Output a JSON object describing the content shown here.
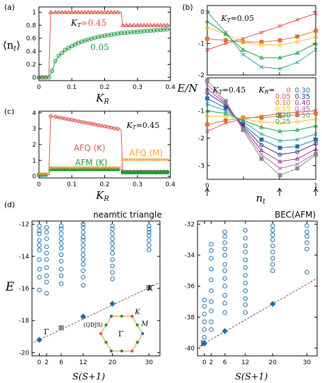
{
  "colors": {
    "red": "#e0504c",
    "green": "#1a9a3c",
    "orange": "#f0a030",
    "axis": "#000000",
    "blue": "#1a6fb0",
    "grey": "#888888",
    "teal": "#1a8c9a"
  },
  "chart_data": [
    {
      "panel": "(a)",
      "type": "line",
      "ylabel": "⟨n_t⟩",
      "xlabel": "K_R",
      "xlim": [
        0,
        0.4
      ],
      "ylim": [
        0,
        1
      ],
      "xticks": [
        "0",
        "0.1",
        "0.2",
        "0.3",
        "0.4"
      ],
      "yticks": [
        "0",
        "0.2",
        "0.4",
        "0.6",
        "0.8",
        "1"
      ],
      "annotations": [
        "K_T = 0.45",
        "0.05"
      ],
      "series": [
        {
          "name": "K_T = 0.45",
          "color": "red",
          "marker": "triangle",
          "x": [
            0,
            0.01,
            0.02,
            0.03,
            0.036,
            0.05,
            0.1,
            0.15,
            0.2,
            0.25,
            0.255,
            0.3,
            0.35,
            0.4
          ],
          "y": [
            0,
            0,
            0,
            0,
            1,
            1,
            1,
            1,
            1,
            1,
            0.8,
            0.8,
            0.8,
            0.8
          ]
        },
        {
          "name": "0.05",
          "color": "green",
          "marker": "circle",
          "x": [
            0,
            0.01,
            0.02,
            0.03,
            0.04,
            0.05,
            0.06,
            0.08,
            0.1,
            0.12,
            0.15,
            0.18,
            0.2,
            0.25,
            0.3,
            0.35,
            0.4
          ],
          "y": [
            0,
            0,
            0,
            0,
            0.1,
            0.25,
            0.33,
            0.42,
            0.48,
            0.53,
            0.58,
            0.62,
            0.64,
            0.68,
            0.7,
            0.72,
            0.74
          ]
        }
      ]
    },
    {
      "panel": "(c)",
      "type": "line",
      "xlabel": "K_R",
      "xlim": [
        0,
        0.4
      ],
      "ylim": [
        0,
        4
      ],
      "xticks": [
        "0",
        "0.1",
        "0.2",
        "0.3",
        "0.4"
      ],
      "yticks": [
        "0",
        "1",
        "2",
        "3",
        "4"
      ],
      "annotations": [
        "K_T = 0.45",
        "AFQ (K)",
        "AFM (K)",
        "AFQ (M)"
      ],
      "series": [
        {
          "name": "AFQ (K)",
          "color": "red",
          "marker": "circle",
          "x": [
            0,
            0.03,
            0.036,
            0.05,
            0.1,
            0.15,
            0.2,
            0.25,
            0.255,
            0.3,
            0.4
          ],
          "y": [
            0.1,
            0.1,
            3.8,
            3.75,
            3.55,
            3.35,
            3.15,
            2.95,
            0.3,
            0.3,
            0.3
          ]
        },
        {
          "name": "AFM (K)",
          "color": "green",
          "marker": "square",
          "x": [
            0,
            0.03,
            0.036,
            0.1,
            0.2,
            0.25,
            0.255,
            0.3,
            0.4
          ],
          "y": [
            0.1,
            0.1,
            0.45,
            0.45,
            0.45,
            0.45,
            0.25,
            0.25,
            0.25
          ]
        },
        {
          "name": "AFQ (M)",
          "color": "orange",
          "marker": "x",
          "x": [
            0,
            0.03,
            0.036,
            0.1,
            0.2,
            0.25,
            0.255,
            0.3,
            0.4
          ],
          "y": [
            0.15,
            0.15,
            0.55,
            0.55,
            0.55,
            0.55,
            1.05,
            1.05,
            1.05
          ]
        }
      ]
    },
    {
      "panel": "(b)",
      "type": "line",
      "ylabel": "E/N",
      "xlabel": "n_t",
      "xlim": [
        0,
        1
      ],
      "subplots": [
        {
          "annotation": "K_T = 0.05",
          "ylim": [
            -2,
            0.2
          ],
          "yticks": [
            "0",
            "-1",
            "-2"
          ],
          "series": [
            {
              "K_R": "0.05",
              "color": "#e0504c",
              "y": [
                -1.2,
                -1.0,
                -0.85,
                -0.65,
                -0.45,
                -0.25,
                -0.05
              ]
            },
            {
              "K_R": "0.10",
              "color": "#e07030",
              "y": [
                -0.85,
                -0.9,
                -0.95,
                -0.95,
                -0.9,
                -0.78,
                -0.6
              ]
            },
            {
              "K_R": "0.15",
              "color": "#f0c020",
              "y": [
                -0.5,
                -0.7,
                -0.95,
                -1.05,
                -1.05,
                -0.95,
                -0.8
              ]
            },
            {
              "K_R": "0.20",
              "color": "#1a9a3c",
              "y": [
                -0.3,
                -0.7,
                -1.2,
                -1.45,
                -1.45,
                -1.3,
                -1.0
              ]
            },
            {
              "K_R": "0.30",
              "color": "#2aa0a0",
              "y": [
                0.0,
                -0.65,
                -1.35,
                -1.75,
                -1.8,
                -1.6,
                -1.2
              ]
            }
          ]
        },
        {
          "annotation": "K_T = 0.45",
          "ylim": [
            -3.5,
            0.2
          ],
          "yticks": [
            "-1",
            "-2",
            "-3"
          ],
          "legend_title": "K_R",
          "legend": [
            {
              "label": "0",
              "color": "#e0504c"
            },
            {
              "label": "0.05",
              "color": "#e0504c"
            },
            {
              "label": "0.10",
              "color": "#e07030"
            },
            {
              "label": "0.15",
              "color": "#f0c020"
            },
            {
              "label": "0.20",
              "color": "#1a9a3c"
            },
            {
              "label": "0.25",
              "color": "#2aa0a0"
            },
            {
              "label": "0.30",
              "color": "#1a6fb0"
            },
            {
              "label": "0.35",
              "color": "#303080"
            },
            {
              "label": "0.40",
              "color": "#9a3090"
            },
            {
              "label": "0.45",
              "color": "#c060b0"
            },
            {
              "label": "0.50",
              "color": "#888888"
            }
          ],
          "series": [
            {
              "K_R": "0",
              "color": "#e0504c",
              "y": [
                -1.75,
                -1.45,
                -1.3,
                -1.2,
                -1.1,
                -1.05,
                -1.0
              ]
            },
            {
              "K_R": "0.10",
              "color": "#e07030",
              "y": [
                -1.5,
                -1.35,
                -1.25,
                -1.25,
                -1.2,
                -1.15,
                -1.1
              ]
            },
            {
              "K_R": "0.15",
              "color": "#f0c020",
              "y": [
                -1.2,
                -1.2,
                -1.3,
                -1.4,
                -1.45,
                -1.4,
                -1.3
              ]
            },
            {
              "K_R": "0.20",
              "color": "#1a9a3c",
              "y": [
                -1.0,
                -1.1,
                -1.35,
                -1.6,
                -1.75,
                -1.7,
                -1.55
              ]
            },
            {
              "K_R": "0.25",
              "color": "#2aa0a0",
              "y": [
                -0.75,
                -1.0,
                -1.4,
                -1.85,
                -2.1,
                -2.05,
                -1.85
              ]
            },
            {
              "K_R": "0.30",
              "color": "#1a6fb0",
              "y": [
                -0.55,
                -0.9,
                -1.5,
                -2.05,
                -2.35,
                -2.3,
                -2.05
              ]
            },
            {
              "K_R": "0.35",
              "color": "#303080",
              "y": [
                -0.35,
                -0.8,
                -1.55,
                -2.25,
                -2.6,
                -2.5,
                -2.2
              ]
            },
            {
              "K_R": "0.40",
              "color": "#9a3090",
              "y": [
                -0.2,
                -0.75,
                -1.6,
                -2.45,
                -2.85,
                -2.75,
                -2.4
              ]
            },
            {
              "K_R": "0.45",
              "color": "#c060b0",
              "y": [
                -0.05,
                -0.7,
                -1.65,
                -2.6,
                -3.1,
                -2.95,
                -2.55
              ]
            },
            {
              "K_R": "0.50",
              "color": "#888888",
              "y": [
                0.1,
                -0.65,
                -1.7,
                -2.75,
                -3.35,
                -3.1,
                -2.6
              ]
            }
          ]
        }
      ],
      "x": [
        0,
        0.17,
        0.33,
        0.5,
        0.67,
        0.83,
        1
      ],
      "xticks": [
        "0",
        "1"
      ]
    },
    {
      "panel": "(d-left)",
      "type": "scatter",
      "title": "neamtic triangle",
      "ylabel": "E",
      "xlabel": "S(S+1)",
      "xticks": [
        "0",
        "2",
        "6",
        "12",
        "20",
        "30"
      ],
      "yticks": [
        "-12",
        "-14",
        "-16",
        "-18",
        "-20"
      ],
      "ylim": [
        -20,
        -12
      ],
      "annotations": [
        "Γ",
        "K",
        "(QDJS)",
        "K",
        "M",
        "Γ"
      ],
      "tower": [
        {
          "x": 0,
          "y": -19.2,
          "shape": "diamond"
        },
        {
          "x": 6,
          "y": -18.45,
          "shape": "square"
        },
        {
          "x": 12,
          "y": -17.75,
          "shape": "diamond"
        },
        {
          "x": 20,
          "y": -16.95,
          "shape": "diamond"
        },
        {
          "x": 30,
          "y": -15.95,
          "shape": "square"
        }
      ],
      "levels": [
        {
          "x": 0,
          "y": [
            -12.1,
            -12.4,
            -12.6,
            -13.0,
            -13.3,
            -13.6,
            -14.2,
            -14.8,
            -15.3,
            -16.1
          ]
        },
        {
          "x": 2,
          "y": [
            -12.2,
            -12.5,
            -12.9,
            -13.4,
            -13.8,
            -14.2,
            -14.7,
            -15.2,
            -15.6,
            -16.3
          ]
        },
        {
          "x": 6,
          "y": [
            -12.1,
            -12.3,
            -12.6,
            -12.9,
            -13.2,
            -13.5,
            -13.9,
            -14.3,
            -14.8,
            -15.2,
            -15.7
          ]
        },
        {
          "x": 12,
          "y": [
            -12.0,
            -12.2,
            -12.5,
            -12.8,
            -13.0,
            -13.3,
            -13.6,
            -13.9,
            -14.2,
            -14.5,
            -14.9,
            -15.3,
            -15.8
          ]
        },
        {
          "x": 20,
          "y": [
            -12.1,
            -12.3,
            -12.6,
            -12.9,
            -13.2,
            -13.5,
            -13.8,
            -14.2,
            -14.6,
            -15.0,
            -15.4
          ]
        },
        {
          "x": 30,
          "y": [
            -12.1,
            -12.3,
            -12.5,
            -12.7,
            -13.0,
            -13.3,
            -13.6
          ]
        }
      ]
    },
    {
      "panel": "(d-right)",
      "type": "scatter",
      "title": "BEC(AFM)",
      "xlabel": "S(S+1)",
      "xticks": [
        "0",
        "2",
        "6",
        "12",
        "20",
        "30"
      ],
      "yticks": [
        "-32",
        "-34",
        "-36",
        "-38",
        "-40"
      ],
      "ylim": [
        -40.5,
        -32
      ],
      "annotations": [
        "Γ"
      ],
      "tower": [
        {
          "x": 0,
          "y": -39.7,
          "shape": "diamond"
        },
        {
          "x": 6,
          "y": -38.9,
          "shape": "diamond"
        },
        {
          "x": 20,
          "y": -37.15,
          "shape": "diamond"
        }
      ],
      "levels": [
        {
          "x": 0,
          "y": [
            -36.9,
            -37.3,
            -37.8,
            -38.3,
            -38.8,
            -39.3
          ]
        },
        {
          "x": 2,
          "y": [
            -33.3,
            -33.7,
            -34.2,
            -34.9,
            -35.6,
            -36.3,
            -37.0,
            -37.6,
            -38.3,
            -38.8
          ]
        },
        {
          "x": 6,
          "y": [
            -32.5,
            -32.8,
            -33.2,
            -33.6,
            -34.0,
            -34.6,
            -35.0,
            -35.5,
            -36.0,
            -36.6,
            -37.1,
            -37.7
          ]
        },
        {
          "x": 12,
          "y": [
            -32.4,
            -32.9,
            -33.4,
            -33.8,
            -34.3,
            -34.8,
            -35.3,
            -35.8,
            -36.3,
            -36.8,
            -37.2,
            -37.7
          ]
        },
        {
          "x": 20,
          "y": [
            -32.1,
            -32.4,
            -32.7,
            -33.0,
            -33.4,
            -33.8,
            -34.2,
            -34.6,
            -35.0
          ]
        },
        {
          "x": 30,
          "y": [
            -32.1,
            -32.5,
            -32.8,
            -33.2,
            -33.6,
            -35.1
          ]
        }
      ]
    }
  ],
  "labels": {
    "a": "(a)",
    "b": "(b)",
    "c": "(c)",
    "d": "(d)",
    "nt": "⟨n",
    "nt_sub": "t",
    "nt_close": "⟩",
    "KR": "K",
    "KR_sub": "R",
    "EN": "E/N",
    "E": "E",
    "nt_axis": "n",
    "nt_axis_sub": "t",
    "SS": "S(S+1)",
    "a_red": "K",
    "a_red_sub": "T",
    "a_red_val": "=0.45",
    "a_green": "0.05",
    "b_top": "K",
    "b_top_sub": "T",
    "b_top_val": "=0.05",
    "b_bot": "K",
    "b_bot_sub": "T",
    "b_bot_val": "=0.45",
    "b_leg": "K",
    "b_leg_sub": "R",
    "b_leg_eq": "=",
    "c_kt": "K",
    "c_kt_sub": "T",
    "c_kt_val": "=0.45",
    "c_afqk": "AFQ (K)",
    "c_afmk": "AFM (K)",
    "c_afqm": "AFQ (M)",
    "d_left_title": "neamtic triangle",
    "d_right_title": "BEC(AFM)",
    "d_gamma": "Γ",
    "d_K": "K",
    "d_qdjs": "(QDJS)",
    "d_bz_K": "K",
    "d_bz_M": "M",
    "d_bz_G": "Γ",
    "d_r_gamma": "Γ"
  }
}
